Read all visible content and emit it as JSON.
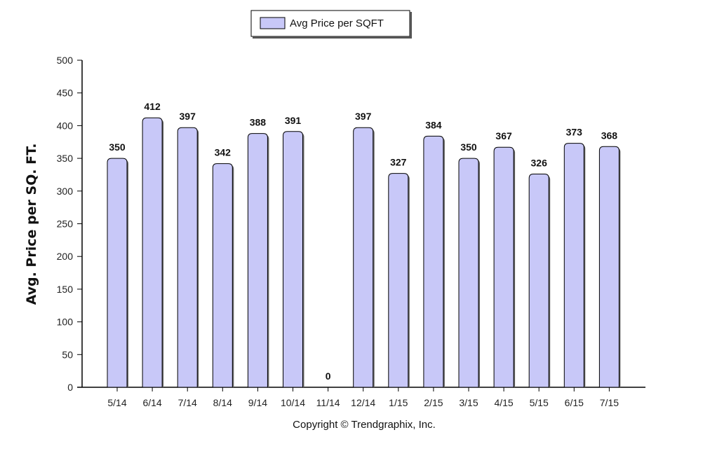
{
  "chart_data": {
    "type": "bar",
    "categories": [
      "5/14",
      "6/14",
      "7/14",
      "8/14",
      "9/14",
      "10/14",
      "11/14",
      "12/14",
      "1/15",
      "2/15",
      "3/15",
      "4/15",
      "5/15",
      "6/15",
      "7/15"
    ],
    "series": [
      {
        "name": "Avg Price per SQFT",
        "values": [
          350,
          412,
          397,
          342,
          388,
          391,
          0,
          397,
          327,
          384,
          350,
          367,
          326,
          373,
          368
        ]
      }
    ],
    "ylabel": "Avg. Price per SQ. FT.",
    "xlabel": "",
    "ylim": [
      0,
      500
    ],
    "yticks": [
      0,
      50,
      100,
      150,
      200,
      250,
      300,
      350,
      400,
      450,
      500
    ],
    "grid": false,
    "legend_position": "top-center",
    "bar_color": "#c8c8f8",
    "bar_edge_color": "#000000",
    "data_labels": true
  },
  "footer": {
    "copyright": "Copyright © Trendgraphix, Inc."
  }
}
